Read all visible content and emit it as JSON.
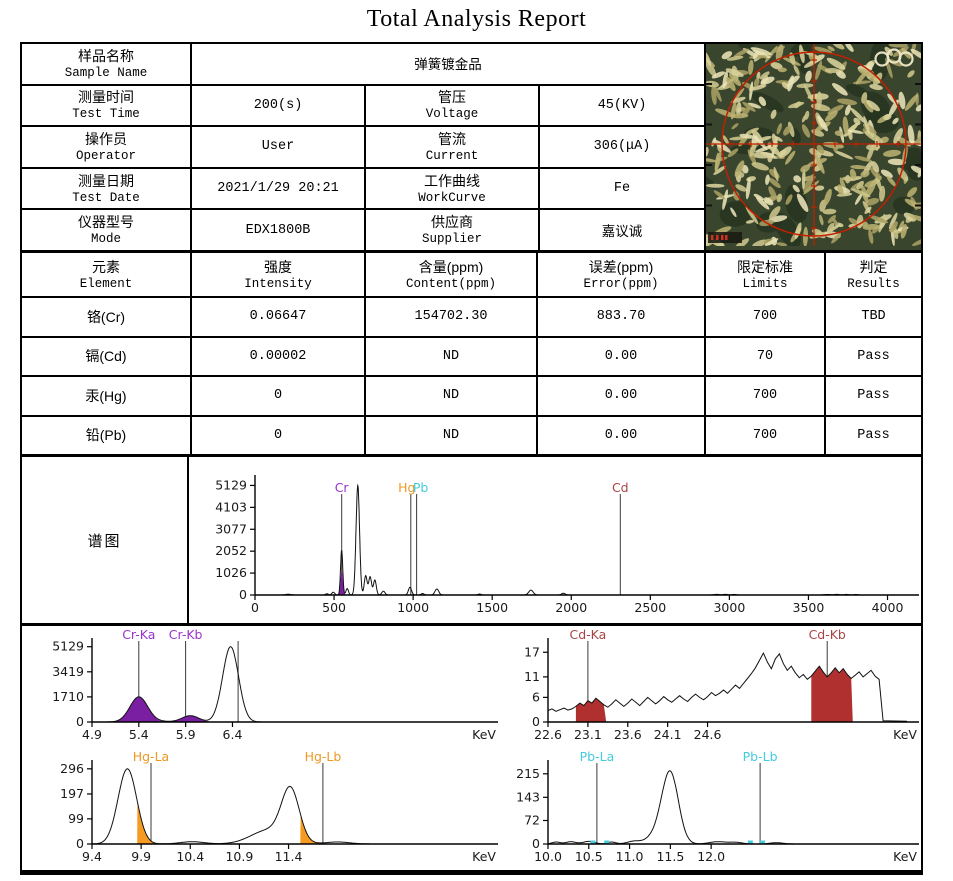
{
  "title": "Total Analysis Report",
  "info": {
    "sample": {
      "label_cn": "样品名称",
      "label_en": "Sample Name",
      "value": "弹簧镀金品"
    },
    "rows": [
      {
        "l1_cn": "测量时间",
        "l1_en": "Test Time",
        "v1": "200(s)",
        "l2_cn": "管压",
        "l2_en": "Voltage",
        "v2": "45(KV)"
      },
      {
        "l1_cn": "操作员",
        "l1_en": "Operator",
        "v1": "User",
        "l2_cn": "管流",
        "l2_en": "Current",
        "v2": "306(μA)"
      },
      {
        "l1_cn": "测量日期",
        "l1_en": "Test Date",
        "v1": "2021/1/29 20:21",
        "l2_cn": "工作曲线",
        "l2_en": "WorkCurve",
        "v2": "Fe"
      },
      {
        "l1_cn": "仪器型号",
        "l1_en": "Mode",
        "v1": "EDX1800B",
        "l2_cn": "供应商",
        "l2_en": "Supplier",
        "v2": "嘉议诚"
      }
    ]
  },
  "elements": {
    "headers": [
      {
        "cn": "元素",
        "en": "Element"
      },
      {
        "cn": "强度",
        "en": "Intensity"
      },
      {
        "cn": "含量(ppm)",
        "en": "Content(ppm)"
      },
      {
        "cn": "误差(ppm)",
        "en": "Error(ppm)"
      },
      {
        "cn": "限定标准",
        "en": "Limits"
      },
      {
        "cn": "判定",
        "en": "Results"
      }
    ],
    "rows": [
      {
        "element": "铬(Cr)",
        "intensity": "0.06647",
        "content": "154702.30",
        "error": "883.70",
        "limit": "700",
        "result": "TBD"
      },
      {
        "element": "镉(Cd)",
        "intensity": "0.00002",
        "content": "ND",
        "error": "0.00",
        "limit": "70",
        "result": "Pass"
      },
      {
        "element": "汞(Hg)",
        "intensity": "0",
        "content": "ND",
        "error": "0.00",
        "limit": "700",
        "result": "Pass"
      },
      {
        "element": "铅(Pb)",
        "intensity": "0",
        "content": "ND",
        "error": "0.00",
        "limit": "700",
        "result": "Pass"
      }
    ]
  },
  "spectrum_label": "谱图",
  "colors": {
    "purple_fill": "#7a1fa2",
    "purple_label": "#9933cc",
    "orange": "#ee9922",
    "orange_fill": "#f59b22",
    "cyan": "#44ccdd",
    "red": "#aa4444",
    "red_fill": "#b03030",
    "curve": "#111111",
    "photo_palette": [
      "#cdc68b",
      "#d9d39c",
      "#b9b171",
      "#e9e3b6",
      "#a89f63"
    ],
    "photo_bg": "#39452c",
    "photo_dark": "#273420",
    "reticle": "#c22000"
  },
  "chart_data": [
    {
      "id": "main",
      "type": "line",
      "samples": 2400,
      "x_range": [
        0,
        4060
      ],
      "y_range": [
        0,
        5430
      ],
      "x_ticks": [
        [
          "0",
          0
        ],
        [
          "500",
          500
        ],
        [
          "1000",
          1000
        ],
        [
          "1500",
          1500
        ],
        [
          "2000",
          2000
        ],
        [
          "2500",
          2500
        ],
        [
          "3000",
          3000
        ],
        [
          "3500",
          3500
        ],
        [
          "4000",
          4000
        ]
      ],
      "y_ticks": [
        0,
        1026,
        2052,
        3077,
        4103,
        5129
      ],
      "x_unit": "",
      "label_offset": 13,
      "peaks": [
        [
          210,
          35,
          16
        ],
        [
          455,
          55,
          9
        ],
        [
          495,
          130,
          9
        ],
        [
          548,
          2100,
          7
        ],
        [
          583,
          300,
          8
        ],
        [
          650,
          5129,
          11
        ],
        [
          700,
          900,
          9
        ],
        [
          728,
          850,
          9
        ],
        [
          758,
          700,
          9
        ],
        [
          812,
          180,
          10
        ],
        [
          980,
          360,
          10
        ],
        [
          1060,
          70,
          9
        ],
        [
          1150,
          280,
          12
        ],
        [
          1420,
          45,
          10
        ],
        [
          1745,
          230,
          14
        ],
        [
          1950,
          80,
          12
        ],
        [
          2920,
          28,
          18
        ],
        [
          2975,
          30,
          14
        ],
        [
          3030,
          26,
          12
        ],
        [
          3620,
          25,
          20
        ],
        [
          3680,
          28,
          16
        ],
        [
          3740,
          26,
          14
        ],
        [
          3800,
          24,
          12
        ]
      ],
      "fill_peaks": [
        [
          548,
          1120,
          8,
          "#7a1fa2"
        ]
      ],
      "markers": [
        {
          "x": 548,
          "label": "Cr",
          "color": "#9933cc"
        },
        {
          "x": 985,
          "label": "Hg",
          "color": "#ee9922",
          "dx": -4
        },
        {
          "x": 1022,
          "label": "Pb",
          "color": "#44ccdd",
          "dx": 4
        },
        {
          "x": 2310,
          "label": "Cd",
          "color": "#aa4444"
        }
      ]
    },
    {
      "id": "cr",
      "type": "line",
      "x_range": [
        4.9,
        9.15
      ],
      "y_range": [
        0,
        5450
      ],
      "x_ticks": [
        [
          "4.9",
          4.9
        ],
        [
          "5.4",
          5.4
        ],
        [
          "5.9",
          5.9
        ],
        [
          "6.4",
          6.4
        ]
      ],
      "y_ticks": [
        0,
        1710,
        3419,
        5129
      ],
      "x_unit": "KeV",
      "peaks": [
        [
          5.4,
          1710,
          0.095
        ],
        [
          5.63,
          40,
          0.1
        ],
        [
          5.95,
          430,
          0.09
        ],
        [
          6.38,
          5129,
          0.085
        ]
      ],
      "fill_peaks": [
        [
          5.4,
          1710,
          0.095,
          "#7a1fa2"
        ],
        [
          5.95,
          430,
          0.09,
          "#7a1fa2"
        ]
      ],
      "markers": [
        {
          "x": 5.4,
          "label": "Cr-Ka",
          "color": "#9933cc"
        },
        {
          "x": 5.9,
          "label": "Cr-Kb",
          "color": "#9933cc"
        },
        {
          "x": 6.46,
          "label": "",
          "color": "#333333"
        }
      ]
    },
    {
      "id": "cd",
      "type": "line",
      "x_range": [
        22.6,
        27.15
      ],
      "y_range": [
        0,
        19.5
      ],
      "x_ticks": [
        [
          "22.6",
          22.6
        ],
        [
          "23.1",
          23.1
        ],
        [
          "23.6",
          23.6
        ],
        [
          "24.1",
          24.1
        ],
        [
          "24.6",
          24.6
        ]
      ],
      "y_ticks": [
        0,
        6,
        11,
        17
      ],
      "x_unit": "KeV",
      "points": [
        [
          22.6,
          2.8
        ],
        [
          22.65,
          3.2
        ],
        [
          22.7,
          2.6
        ],
        [
          22.75,
          3.0
        ],
        [
          22.8,
          3.4
        ],
        [
          22.85,
          2.9
        ],
        [
          22.9,
          3.2
        ],
        [
          22.95,
          3.8
        ],
        [
          23.0,
          4.6
        ],
        [
          23.05,
          4.0
        ],
        [
          23.1,
          5.2
        ],
        [
          23.15,
          4.6
        ],
        [
          23.2,
          5.8
        ],
        [
          23.25,
          5.0
        ],
        [
          23.3,
          4.2
        ],
        [
          23.35,
          3.6
        ],
        [
          23.4,
          4.4
        ],
        [
          23.45,
          5.4
        ],
        [
          23.5,
          4.6
        ],
        [
          23.55,
          3.8
        ],
        [
          23.6,
          4.6
        ],
        [
          23.65,
          5.6
        ],
        [
          23.7,
          4.8
        ],
        [
          23.75,
          4.0
        ],
        [
          23.8,
          5.0
        ],
        [
          23.85,
          6.0
        ],
        [
          23.9,
          5.2
        ],
        [
          23.95,
          4.4
        ],
        [
          24.0,
          5.2
        ],
        [
          24.05,
          6.2
        ],
        [
          24.1,
          5.4
        ],
        [
          24.15,
          4.8
        ],
        [
          24.2,
          5.6
        ],
        [
          24.25,
          6.4
        ],
        [
          24.3,
          5.6
        ],
        [
          24.35,
          5.0
        ],
        [
          24.4,
          6.0
        ],
        [
          24.45,
          6.8
        ],
        [
          24.5,
          6.0
        ],
        [
          24.55,
          5.4
        ],
        [
          24.6,
          6.2
        ],
        [
          24.65,
          7.2
        ],
        [
          24.7,
          6.4
        ],
        [
          24.75,
          7.0
        ],
        [
          24.8,
          7.8
        ],
        [
          24.85,
          7.0
        ],
        [
          24.9,
          8.0
        ],
        [
          24.95,
          9.0
        ],
        [
          25.0,
          8.2
        ],
        [
          25.05,
          9.4
        ],
        [
          25.1,
          10.6
        ],
        [
          25.15,
          11.8
        ],
        [
          25.2,
          13.2
        ],
        [
          25.25,
          15.0
        ],
        [
          25.3,
          16.8
        ],
        [
          25.35,
          14.6
        ],
        [
          25.4,
          13.0
        ],
        [
          25.45,
          15.4
        ],
        [
          25.5,
          16.6
        ],
        [
          25.55,
          14.2
        ],
        [
          25.6,
          12.6
        ],
        [
          25.65,
          13.6
        ],
        [
          25.7,
          12.0
        ],
        [
          25.75,
          10.8
        ],
        [
          25.8,
          11.6
        ],
        [
          25.85,
          10.4
        ],
        [
          25.9,
          11.2
        ],
        [
          25.95,
          12.4
        ],
        [
          26.0,
          13.6
        ],
        [
          26.05,
          12.2
        ],
        [
          26.1,
          11.0
        ],
        [
          26.15,
          12.0
        ],
        [
          26.2,
          13.2
        ],
        [
          26.25,
          12.0
        ],
        [
          26.3,
          13.0
        ],
        [
          26.35,
          11.6
        ],
        [
          26.4,
          10.6
        ],
        [
          26.45,
          11.4
        ],
        [
          26.5,
          12.2
        ],
        [
          26.55,
          11.0
        ],
        [
          26.6,
          11.8
        ],
        [
          26.65,
          12.6
        ],
        [
          26.7,
          11.2
        ],
        [
          26.75,
          10.4
        ],
        [
          26.8,
          0.3
        ],
        [
          27.1,
          0.2
        ]
      ],
      "fills": [
        {
          "from": 22.95,
          "to": 23.33,
          "color": "#b03030"
        },
        {
          "from": 25.9,
          "to": 26.42,
          "color": "#b03030"
        }
      ],
      "markers": [
        {
          "x": 23.1,
          "label": "Cd-Ka",
          "color": "#aa4444"
        },
        {
          "x": 26.1,
          "label": "Cd-Kb",
          "color": "#aa4444"
        }
      ]
    },
    {
      "id": "hg",
      "type": "line",
      "x_range": [
        9.4,
        13.45
      ],
      "y_range": [
        0,
        315
      ],
      "x_ticks": [
        [
          "9.4",
          9.4
        ],
        [
          "9.9",
          9.9
        ],
        [
          "10.4",
          10.4
        ],
        [
          "10.9",
          10.9
        ],
        [
          "11.4",
          11.4
        ]
      ],
      "y_ticks": [
        0,
        99,
        197,
        296
      ],
      "x_unit": "KeV",
      "peaks": [
        [
          9.76,
          296,
          0.095
        ],
        [
          10.42,
          9,
          0.12
        ],
        [
          11.2,
          55,
          0.18
        ],
        [
          11.42,
          200,
          0.09
        ],
        [
          11.9,
          8,
          0.12
        ]
      ],
      "fills": [
        {
          "from": 9.86,
          "to": 10.06,
          "color": "#f59b22"
        },
        {
          "from": 11.52,
          "to": 11.78,
          "color": "#f59b22"
        }
      ],
      "markers": [
        {
          "x": 10.0,
          "label": "Hg-La",
          "color": "#ee9922"
        },
        {
          "x": 11.75,
          "label": "Hg-Lb",
          "color": "#ee9922"
        }
      ]
    },
    {
      "id": "pb",
      "type": "line",
      "x_range": [
        10.0,
        14.45
      ],
      "y_range": [
        0,
        245
      ],
      "x_ticks": [
        [
          "10.0",
          10.0
        ],
        [
          "10.5",
          10.5
        ],
        [
          "11.0",
          11.0
        ],
        [
          "11.5",
          11.5
        ],
        [
          "12.0",
          12.0
        ]
      ],
      "y_ticks": [
        0,
        72,
        143,
        215
      ],
      "x_unit": "KeV",
      "peaks": [
        [
          10.1,
          6,
          0.05
        ],
        [
          10.28,
          7,
          0.06
        ],
        [
          10.5,
          8,
          0.07
        ],
        [
          10.78,
          6,
          0.05
        ],
        [
          11.05,
          8,
          0.08
        ],
        [
          11.35,
          30,
          0.12
        ],
        [
          11.5,
          210,
          0.1
        ],
        [
          12.08,
          7,
          0.1
        ],
        [
          12.3,
          5,
          0.08
        ],
        [
          12.8,
          4,
          0.08
        ]
      ],
      "markers": [
        {
          "x": 10.6,
          "label": "Pb-La",
          "color": "#44ccdd"
        },
        {
          "x": 12.6,
          "label": "Pb-Lb",
          "color": "#44ccdd"
        }
      ],
      "dots": {
        "color": "#44ccdd",
        "xs": [
          10.55,
          10.72,
          12.48,
          12.63
        ]
      }
    }
  ]
}
